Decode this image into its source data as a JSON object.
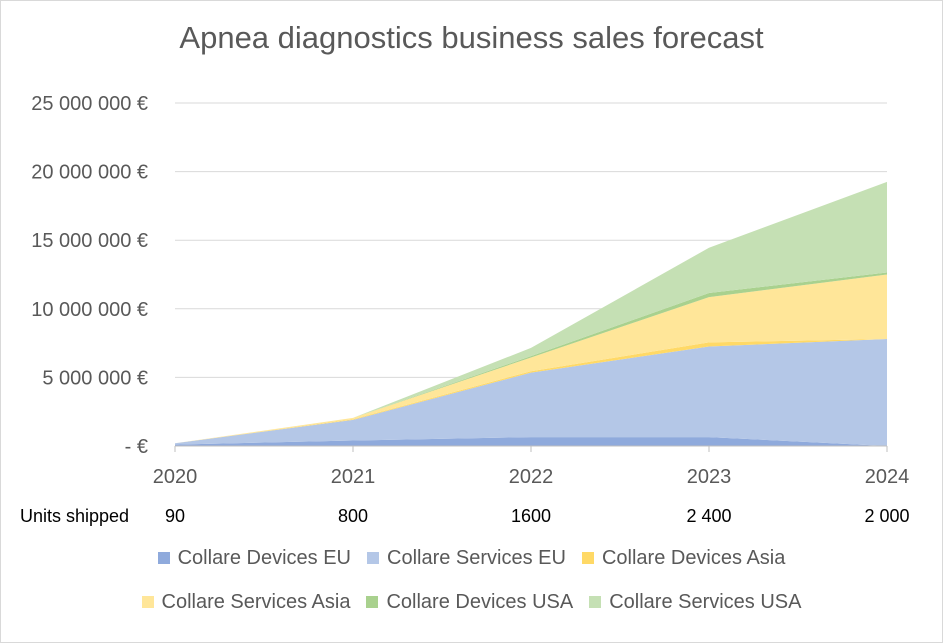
{
  "chart_data": {
    "type": "area",
    "stacked": true,
    "title": "Apnea diagnostics business sales forecast",
    "x": [
      "2020",
      "2021",
      "2022",
      "2023",
      "2024"
    ],
    "ylim": [
      0,
      25000000
    ],
    "yticks": [
      {
        "value": 0,
        "label": "- €"
      },
      {
        "value": 5000000,
        "label": "5 000 000 €"
      },
      {
        "value": 10000000,
        "label": "10 000 000 €"
      },
      {
        "value": 15000000,
        "label": "15 000 000 €"
      },
      {
        "value": 20000000,
        "label": "20 000 000 €"
      },
      {
        "value": 25000000,
        "label": "25 000 000 €"
      }
    ],
    "grid": true,
    "legend_position": "bottom",
    "table_row": {
      "label": "Units shipped",
      "values": [
        "90",
        "800",
        "1600",
        "2 400",
        "2 000"
      ]
    },
    "series": [
      {
        "name": "Collare Devices EU",
        "color": "#8faadc",
        "values": [
          100000,
          400000,
          650000,
          650000,
          0
        ]
      },
      {
        "name": "Collare Services EU",
        "color": "#b4c7e7",
        "values": [
          100000,
          1500000,
          4700000,
          6600000,
          7800000
        ]
      },
      {
        "name": "Collare Devices Asia",
        "color": "#ffd966",
        "values": [
          0,
          50000,
          100000,
          300000,
          0
        ]
      },
      {
        "name": "Collare Services Asia",
        "color": "#ffe699",
        "values": [
          0,
          100000,
          1000000,
          3300000,
          4700000
        ]
      },
      {
        "name": "Collare Devices USA",
        "color": "#a9d18e",
        "values": [
          0,
          0,
          100000,
          300000,
          150000
        ]
      },
      {
        "name": "Collare Services USA",
        "color": "#c5e0b4",
        "values": [
          0,
          0,
          600000,
          3300000,
          6600000
        ]
      }
    ]
  }
}
